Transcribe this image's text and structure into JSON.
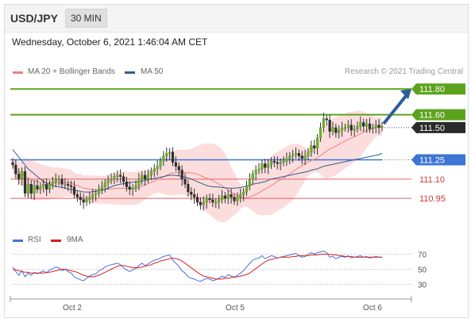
{
  "header": {
    "symbol": "USD/JPY",
    "interval": "30 MIN"
  },
  "datetime": "Wednesday, October 6, 2021 1:46:04 AM CET",
  "legend": {
    "ma20_label": "MA 20 + Bollinger Bands",
    "ma50_label": "MA 50",
    "ma20_color": "#f08080",
    "ma50_color": "#2f5d8f",
    "credit": "Research © 2021 Trading Central"
  },
  "rsi_legend": {
    "rsi_label": "RSI",
    "ma_label": "9MA",
    "rsi_color": "#4a6fd8",
    "ma_color": "#d42020"
  },
  "chart_data": [
    {
      "type": "candlestick",
      "title": "",
      "x_ticks": [
        "Oct 2",
        "Oct 5",
        "Oct 6"
      ],
      "ylim": [
        110.76,
        111.9
      ],
      "levels": [
        {
          "value": 111.8,
          "label": "111.80",
          "role": "target",
          "color": "#5ba31c"
        },
        {
          "value": 111.6,
          "label": "111.60",
          "role": "resistance",
          "color": "#5ba31c"
        },
        {
          "value": 111.5,
          "label": "111.50",
          "role": "last price",
          "color": "#2a2a2a"
        },
        {
          "value": 111.25,
          "label": "111.25",
          "role": "pivot",
          "color": "#3e74d4"
        },
        {
          "value": 111.1,
          "label": "111.10",
          "role": "support",
          "color": "#e06060"
        },
        {
          "value": 110.95,
          "label": "110.95",
          "role": "support",
          "color": "#e06060"
        }
      ],
      "close": [
        111.21,
        111.14,
        111.1,
        111.16,
        110.99,
        111.06,
        110.99,
        111.05,
        111.02,
        111.04,
        111.06,
        111.02,
        111.06,
        111.08,
        111.1,
        111.1,
        111.06,
        111.06,
        111.05,
        111.04,
        110.98,
        110.96,
        110.94,
        110.92,
        110.94,
        110.96,
        110.98,
        110.99,
        111.02,
        111.04,
        111.07,
        111.09,
        111.1,
        111.12,
        111.13,
        111.12,
        111.08,
        111.04,
        111.02,
        111.03,
        111.05,
        111.1,
        111.13,
        111.1,
        111.13,
        111.16,
        111.18,
        111.2,
        111.24,
        111.28,
        111.3,
        111.31,
        111.23,
        111.2,
        111.17,
        111.1,
        111.06,
        111.0,
        110.98,
        110.96,
        110.92,
        110.9,
        110.92,
        110.95,
        110.94,
        110.92,
        110.92,
        110.94,
        110.97,
        110.95,
        110.98,
        110.96,
        110.93,
        110.96,
        110.98,
        111.0,
        111.05,
        111.1,
        111.14,
        111.17,
        111.18,
        111.22,
        111.19,
        111.21,
        111.24,
        111.23,
        111.22,
        111.23,
        111.24,
        111.26,
        111.28,
        111.29,
        111.3,
        111.28,
        111.26,
        111.28,
        111.31,
        111.36,
        111.34,
        111.42,
        111.5,
        111.57,
        111.56,
        111.47,
        111.5,
        111.46,
        111.48,
        111.5,
        111.5,
        111.52,
        111.48,
        111.49,
        111.51,
        111.54,
        111.51,
        111.53,
        111.49,
        111.5,
        111.52,
        111.5,
        111.51
      ],
      "ma50": [
        111.33,
        111.3,
        111.27,
        111.24,
        111.21,
        111.18,
        111.16,
        111.14,
        111.12,
        111.1,
        111.08,
        111.07,
        111.06,
        111.05,
        111.045,
        111.04,
        111.035,
        111.03,
        111.025,
        111.02,
        111.015,
        111.01,
        111.005,
        111.0,
        111.0,
        111.0,
        111.002,
        111.005,
        111.01,
        111.015,
        111.02,
        111.03,
        111.04,
        111.05,
        111.055,
        111.06,
        111.065,
        111.07,
        111.072,
        111.075,
        111.078,
        111.08,
        111.085,
        111.09,
        111.095,
        111.1,
        111.105,
        111.11,
        111.115,
        111.12,
        111.125,
        111.13,
        111.13,
        111.128,
        111.125,
        111.12,
        111.115,
        111.11,
        111.1,
        111.09,
        111.08,
        111.07,
        111.06,
        111.05,
        111.045,
        111.04,
        111.04,
        111.038,
        111.035,
        111.033,
        111.03,
        111.03,
        111.03,
        111.032,
        111.035,
        111.04,
        111.045,
        111.05,
        111.06,
        111.065,
        111.07,
        111.075,
        111.08,
        111.09,
        111.1,
        111.105,
        111.11,
        111.115,
        111.12,
        111.125,
        111.13,
        111.135,
        111.14,
        111.145,
        111.15,
        111.155,
        111.16,
        111.17,
        111.175,
        111.18,
        111.19,
        111.2,
        111.205,
        111.21,
        111.215,
        111.22,
        111.225,
        111.23,
        111.235,
        111.24,
        111.245,
        111.25,
        111.255,
        111.26,
        111.265,
        111.27,
        111.275,
        111.28,
        111.285,
        111.29,
        111.3
      ],
      "arrow": {
        "from_value": 111.53,
        "to_value": 111.8
      }
    },
    {
      "type": "line",
      "title": "",
      "ylim": [
        20,
        80
      ],
      "y_ticks": [
        70,
        50,
        30
      ],
      "series": [
        {
          "name": "RSI",
          "values": [
            53,
            47,
            42,
            48,
            40,
            45,
            42,
            46,
            44,
            46,
            48,
            45,
            49,
            51,
            53,
            52,
            48,
            50,
            47,
            45,
            40,
            38,
            36,
            35,
            38,
            41,
            43,
            44,
            48,
            50,
            53,
            55,
            56,
            57,
            58,
            56,
            52,
            49,
            47,
            49,
            51,
            55,
            58,
            55,
            57,
            60,
            62,
            63,
            65,
            67,
            68,
            69,
            62,
            58,
            54,
            48,
            45,
            40,
            38,
            37,
            35,
            34,
            36,
            38,
            37,
            35,
            36,
            38,
            41,
            39,
            43,
            41,
            39,
            42,
            45,
            48,
            53,
            58,
            62,
            64,
            65,
            68,
            64,
            66,
            68,
            67,
            65,
            66,
            67,
            68,
            69,
            70,
            71,
            68,
            66,
            67,
            70,
            72,
            70,
            72,
            73,
            74,
            72,
            66,
            67,
            64,
            66,
            67,
            66,
            68,
            65,
            66,
            67,
            68,
            66,
            67,
            65,
            66,
            67,
            66,
            66
          ]
        },
        {
          "name": "9MA",
          "values": [
            50,
            49,
            48,
            47,
            46,
            46,
            45,
            45,
            45,
            45,
            45,
            46,
            46,
            47,
            48,
            49,
            50,
            50,
            49,
            48,
            47,
            46,
            44,
            42,
            41,
            40,
            40,
            41,
            42,
            44,
            46,
            48,
            50,
            52,
            54,
            55,
            55,
            54,
            53,
            52,
            52,
            52,
            53,
            54,
            55,
            56,
            58,
            59,
            61,
            62,
            63,
            64,
            65,
            64,
            63,
            61,
            58,
            55,
            52,
            49,
            46,
            43,
            41,
            40,
            39,
            38,
            37,
            37,
            37,
            38,
            38,
            39,
            40,
            40,
            41,
            42,
            43,
            45,
            48,
            51,
            54,
            57,
            60,
            62,
            63,
            64,
            65,
            66,
            66,
            66,
            66,
            67,
            67,
            68,
            68,
            68,
            68,
            69,
            69,
            69,
            70,
            70,
            70,
            70,
            69,
            69,
            68,
            68,
            67,
            67,
            67,
            66,
            66,
            66,
            66,
            66,
            66,
            66,
            66,
            66,
            66
          ]
        }
      ]
    }
  ]
}
